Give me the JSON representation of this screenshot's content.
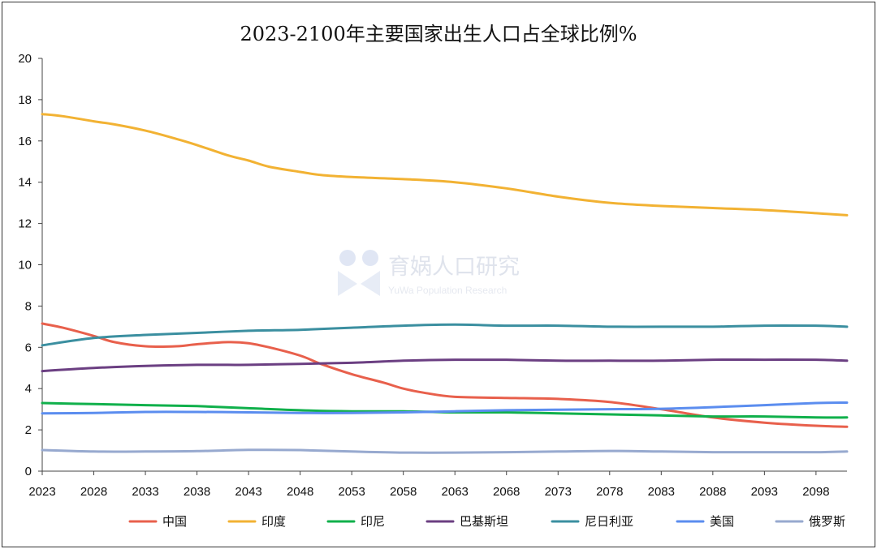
{
  "chart_data": {
    "type": "line",
    "title": "2023-2100年主要国家出生人口占全球比例%",
    "xlabel": "",
    "ylabel": "",
    "ylim": [
      0,
      20
    ],
    "yticks": [
      0,
      2,
      4,
      6,
      8,
      10,
      12,
      14,
      16,
      18,
      20
    ],
    "xlim": [
      2023,
      2101
    ],
    "xticks": [
      2023,
      2028,
      2033,
      2038,
      2043,
      2048,
      2053,
      2058,
      2063,
      2068,
      2073,
      2078,
      2083,
      2088,
      2093,
      2098
    ],
    "grid": false,
    "legend_position": "bottom",
    "series": [
      {
        "name": "中国",
        "color": "#e8604c",
        "x": [
          2023,
          2025,
          2028,
          2030,
          2033,
          2036,
          2038,
          2041,
          2043,
          2045,
          2048,
          2050,
          2053,
          2056,
          2058,
          2060,
          2063,
          2068,
          2073,
          2078,
          2083,
          2088,
          2093,
          2098,
          2101
        ],
        "y": [
          7.15,
          6.95,
          6.55,
          6.25,
          6.05,
          6.05,
          6.15,
          6.25,
          6.2,
          6.0,
          5.6,
          5.2,
          4.7,
          4.3,
          4.0,
          3.8,
          3.6,
          3.55,
          3.5,
          3.35,
          3.0,
          2.6,
          2.35,
          2.2,
          2.15
        ]
      },
      {
        "name": "印度",
        "color": "#f2b233",
        "x": [
          2023,
          2025,
          2028,
          2030,
          2033,
          2036,
          2038,
          2041,
          2043,
          2045,
          2048,
          2050,
          2053,
          2058,
          2063,
          2068,
          2073,
          2078,
          2083,
          2088,
          2093,
          2098,
          2101
        ],
        "y": [
          17.3,
          17.2,
          16.95,
          16.8,
          16.5,
          16.1,
          15.8,
          15.3,
          15.05,
          14.75,
          14.5,
          14.35,
          14.25,
          14.15,
          14.0,
          13.7,
          13.3,
          13.0,
          12.85,
          12.75,
          12.65,
          12.5,
          12.4
        ]
      },
      {
        "name": "印尼",
        "color": "#10b04b",
        "x": [
          2023,
          2028,
          2033,
          2038,
          2043,
          2048,
          2053,
          2058,
          2063,
          2068,
          2073,
          2078,
          2083,
          2088,
          2093,
          2098,
          2101
        ],
        "y": [
          3.3,
          3.25,
          3.2,
          3.15,
          3.05,
          2.95,
          2.9,
          2.9,
          2.85,
          2.85,
          2.8,
          2.75,
          2.7,
          2.65,
          2.65,
          2.6,
          2.6
        ]
      },
      {
        "name": "巴基斯坦",
        "color": "#6b3f82",
        "x": [
          2023,
          2028,
          2033,
          2038,
          2041,
          2043,
          2048,
          2053,
          2058,
          2063,
          2068,
          2073,
          2078,
          2083,
          2088,
          2093,
          2098,
          2101
        ],
        "y": [
          4.85,
          5.0,
          5.1,
          5.15,
          5.15,
          5.15,
          5.2,
          5.25,
          5.35,
          5.4,
          5.4,
          5.35,
          5.35,
          5.35,
          5.4,
          5.4,
          5.4,
          5.35
        ]
      },
      {
        "name": "尼日利亚",
        "color": "#3b8fa0",
        "x": [
          2023,
          2028,
          2033,
          2038,
          2043,
          2048,
          2053,
          2058,
          2063,
          2068,
          2073,
          2078,
          2083,
          2088,
          2093,
          2098,
          2101
        ],
        "y": [
          6.1,
          6.45,
          6.6,
          6.7,
          6.8,
          6.85,
          6.95,
          7.05,
          7.1,
          7.05,
          7.05,
          7.0,
          7.0,
          7.0,
          7.05,
          7.05,
          7.0
        ]
      },
      {
        "name": "美国",
        "color": "#5b8def",
        "x": [
          2023,
          2028,
          2033,
          2038,
          2043,
          2048,
          2053,
          2058,
          2063,
          2068,
          2073,
          2078,
          2083,
          2088,
          2093,
          2098,
          2101
        ],
        "y": [
          2.8,
          2.82,
          2.87,
          2.87,
          2.85,
          2.82,
          2.82,
          2.85,
          2.9,
          2.95,
          2.98,
          3.0,
          3.02,
          3.1,
          3.2,
          3.3,
          3.32
        ]
      },
      {
        "name": "俄罗斯",
        "color": "#97a9cf",
        "x": [
          2023,
          2028,
          2033,
          2038,
          2043,
          2048,
          2053,
          2058,
          2063,
          2068,
          2073,
          2078,
          2083,
          2088,
          2093,
          2098,
          2101
        ],
        "y": [
          1.02,
          0.95,
          0.95,
          0.97,
          1.03,
          1.02,
          0.95,
          0.9,
          0.9,
          0.92,
          0.95,
          0.98,
          0.95,
          0.92,
          0.92,
          0.92,
          0.95
        ]
      }
    ]
  },
  "watermark": {
    "text": "育娲人口研究",
    "subtext": "YuWa Population Research"
  }
}
